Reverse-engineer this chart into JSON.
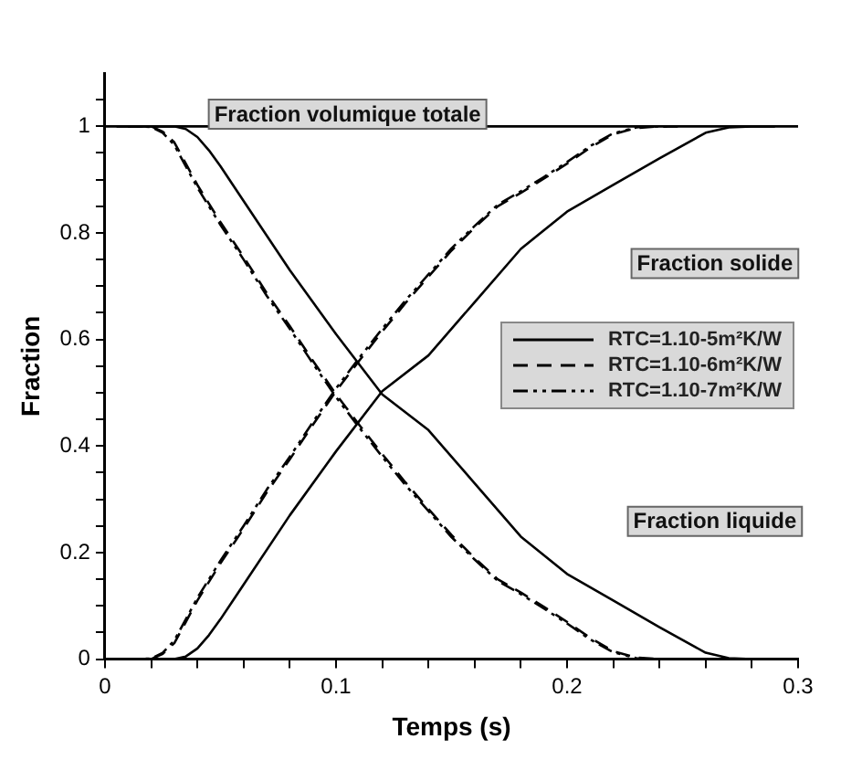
{
  "chart_data": {
    "type": "line",
    "xlabel": "Temps (s)",
    "ylabel": "Fraction",
    "xlim": [
      0,
      0.3
    ],
    "ylim": [
      0,
      1.1
    ],
    "xticks": [
      0,
      {
        "value": 0.02,
        "label": null
      },
      {
        "value": 0.04,
        "label": null
      },
      {
        "value": 0.06,
        "label": null
      },
      {
        "value": 0.08,
        "label": null
      },
      0.1,
      {
        "value": 0.12,
        "label": null
      },
      {
        "value": 0.14,
        "label": null
      },
      {
        "value": 0.16,
        "label": null
      },
      {
        "value": 0.18,
        "label": null
      },
      0.2,
      {
        "value": 0.22,
        "label": null
      },
      {
        "value": 0.24,
        "label": null
      },
      {
        "value": 0.26,
        "label": null
      },
      {
        "value": 0.28,
        "label": null
      },
      0.3
    ],
    "yticks": [
      0,
      {
        "value": 0.05,
        "label": null
      },
      {
        "value": 0.1,
        "label": null
      },
      {
        "value": 0.15,
        "label": null
      },
      0.2,
      {
        "value": 0.25,
        "label": null
      },
      {
        "value": 0.3,
        "label": null
      },
      {
        "value": 0.35,
        "label": null
      },
      0.4,
      {
        "value": 0.45,
        "label": null
      },
      {
        "value": 0.5,
        "label": null
      },
      {
        "value": 0.55,
        "label": null
      },
      0.6,
      {
        "value": 0.65,
        "label": null
      },
      {
        "value": 0.7,
        "label": null
      },
      {
        "value": 0.75,
        "label": null
      },
      0.8,
      {
        "value": 0.85,
        "label": null
      },
      {
        "value": 0.9,
        "label": null
      },
      {
        "value": 0.95,
        "label": null
      },
      1,
      {
        "value": 1.05,
        "label": null
      }
    ],
    "grid": false,
    "legend": "right",
    "marker": "none",
    "annotations": [
      "Fraction volumique totale",
      "Fraction solide",
      "Fraction liquide"
    ],
    "series": [
      {
        "color": "#000000",
        "line_style": "solid",
        "x": [
          0,
          0.3
        ],
        "values": [
          1,
          1
        ]
      },
      {
        "name": "RTC=1.10-5m²K/W",
        "color": "#000000",
        "line_style": "solid",
        "x": [
          0.01,
          0.03,
          0.035,
          0.04,
          0.045,
          0.05,
          0.06,
          0.08,
          0.1,
          0.12,
          0.14,
          0.16,
          0.18,
          0.2,
          0.22,
          0.24,
          0.26,
          0.27,
          0.28
        ],
        "values": [
          1,
          1,
          0.995,
          0.98,
          0.955,
          0.925,
          0.86,
          0.73,
          0.61,
          0.497,
          0.43,
          0.33,
          0.23,
          0.16,
          0.11,
          0.06,
          0.012,
          0.002,
          0
        ]
      },
      {
        "color": "#000000",
        "line_style": "solid",
        "x": [
          0,
          0.03,
          0.035,
          0.04,
          0.045,
          0.05,
          0.06,
          0.08,
          0.1,
          0.12,
          0.14,
          0.16,
          0.18,
          0.2,
          0.22,
          0.24,
          0.26,
          0.27,
          0.28,
          0.29
        ],
        "values": [
          0,
          0,
          0.005,
          0.02,
          0.045,
          0.075,
          0.14,
          0.27,
          0.39,
          0.503,
          0.57,
          0.67,
          0.77,
          0.84,
          0.89,
          0.94,
          0.988,
          0.998,
          1,
          1
        ]
      },
      {
        "name": "RTC=1.10-6m²K/W",
        "color": "#000000",
        "line_style": "dashed",
        "x": [
          0.01,
          0.02,
          0.025,
          0.03,
          0.035,
          0.04,
          0.05,
          0.06,
          0.07,
          0.08,
          0.09,
          0.1,
          0.11,
          0.12,
          0.13,
          0.14,
          0.15,
          0.16,
          0.17,
          0.18,
          0.19,
          0.2,
          0.21,
          0.22,
          0.23,
          0.24
        ],
        "values": [
          1,
          1,
          0.99,
          0.97,
          0.93,
          0.89,
          0.82,
          0.755,
          0.687,
          0.625,
          0.56,
          0.497,
          0.44,
          0.385,
          0.332,
          0.282,
          0.233,
          0.19,
          0.15,
          0.125,
          0.098,
          0.07,
          0.04,
          0.015,
          0.003,
          0
        ]
      },
      {
        "color": "#000000",
        "line_style": "dashed",
        "x": [
          0,
          0.02,
          0.025,
          0.03,
          0.035,
          0.04,
          0.05,
          0.06,
          0.07,
          0.08,
          0.09,
          0.1,
          0.11,
          0.12,
          0.13,
          0.14,
          0.15,
          0.16,
          0.17,
          0.18,
          0.19,
          0.2,
          0.21,
          0.22,
          0.23,
          0.24,
          0.25
        ],
        "values": [
          0,
          0,
          0.01,
          0.03,
          0.07,
          0.11,
          0.18,
          0.245,
          0.313,
          0.375,
          0.44,
          0.503,
          0.56,
          0.615,
          0.668,
          0.718,
          0.767,
          0.81,
          0.85,
          0.875,
          0.902,
          0.93,
          0.96,
          0.985,
          0.997,
          1,
          1
        ]
      },
      {
        "name": "RTC=1.10-7m²K/W",
        "color": "#000000",
        "line_style": "dashdot",
        "x": [
          0.005,
          0.02,
          0.025,
          0.03,
          0.035,
          0.04,
          0.05,
          0.06,
          0.07,
          0.08,
          0.09,
          0.1,
          0.11,
          0.12,
          0.13,
          0.14,
          0.15,
          0.16,
          0.17,
          0.18,
          0.19,
          0.2,
          0.21,
          0.22,
          0.23,
          0.235
        ],
        "values": [
          1,
          0.999,
          0.988,
          0.965,
          0.925,
          0.885,
          0.815,
          0.75,
          0.682,
          0.62,
          0.555,
          0.492,
          0.435,
          0.38,
          0.327,
          0.278,
          0.229,
          0.187,
          0.147,
          0.122,
          0.095,
          0.067,
          0.037,
          0.013,
          0.002,
          0
        ]
      },
      {
        "color": "#000000",
        "line_style": "dashdot",
        "x": [
          0.005,
          0.02,
          0.025,
          0.03,
          0.035,
          0.04,
          0.05,
          0.06,
          0.07,
          0.08,
          0.09,
          0.1,
          0.11,
          0.12,
          0.13,
          0.14,
          0.15,
          0.16,
          0.17,
          0.18,
          0.19,
          0.2,
          0.21,
          0.22,
          0.23,
          0.235,
          0.245
        ],
        "values": [
          0,
          0.001,
          0.012,
          0.035,
          0.075,
          0.115,
          0.185,
          0.25,
          0.318,
          0.38,
          0.445,
          0.508,
          0.565,
          0.62,
          0.673,
          0.722,
          0.771,
          0.813,
          0.853,
          0.878,
          0.905,
          0.933,
          0.963,
          0.987,
          0.998,
          1,
          1
        ]
      }
    ]
  }
}
